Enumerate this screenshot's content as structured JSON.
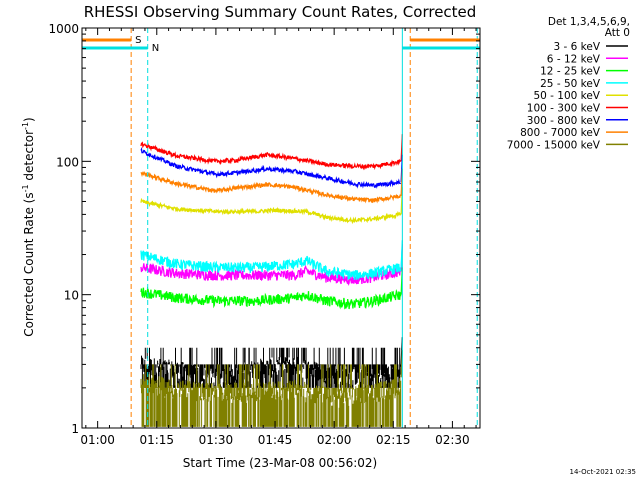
{
  "chart_data": {
    "type": "line",
    "title": "RHESSI Observing Summary Count Rates, Corrected",
    "xlabel": "Start Time (23-Mar-08 00:56:02)",
    "ylabel_main": "Corrected Count Rate (s",
    "ylabel_exp1": "-1",
    "ylabel_mid": " detector",
    "ylabel_exp2": "-1",
    "ylabel_end": ")",
    "y_scale": "log",
    "ylim": [
      1,
      1000
    ],
    "xlim_minutes": [
      56.03,
      157.0
    ],
    "x_tick_labels": [
      "01:00",
      "01:15",
      "01:30",
      "01:45",
      "02:00",
      "02:15",
      "02:30"
    ],
    "x_tick_minutes": [
      60,
      75,
      90,
      105,
      120,
      135,
      150
    ],
    "y_tick_labels": [
      "1",
      "10",
      "100",
      "1000"
    ],
    "y_tick_values": [
      1,
      10,
      100,
      1000
    ],
    "legend_header_1": "Det 1,3,4,5,6,9,",
    "legend_header_2": "Att 0",
    "legend_placement": "right",
    "series": [
      {
        "name": "3 - 6 keV",
        "color": "#000000",
        "x": [
          71,
          80,
          90,
          95,
          100,
          110,
          115,
          120,
          130,
          137
        ],
        "values": [
          3.5,
          3.2,
          2.8,
          3.0,
          3.3,
          3.5,
          3.2,
          3.0,
          2.9,
          3.0
        ]
      },
      {
        "name": "6 - 12 keV",
        "color": "#ff00ff",
        "x": [
          71,
          80,
          90,
          100,
          110,
          113,
          118,
          125,
          130,
          137
        ],
        "values": [
          16,
          14.5,
          14,
          14,
          14,
          15,
          13.5,
          13,
          13.5,
          15
        ]
      },
      {
        "name": "12 - 25 keV",
        "color": "#00ff00",
        "x": [
          71,
          80,
          90,
          100,
          110,
          113,
          118,
          125,
          130,
          137
        ],
        "values": [
          10.5,
          9.5,
          9.0,
          9.0,
          9.5,
          10.0,
          9.0,
          8.5,
          9.0,
          10.0
        ]
      },
      {
        "name": "25 - 50 keV",
        "color": "#00ffff",
        "x": [
          71,
          80,
          90,
          100,
          110,
          113,
          118,
          125,
          130,
          137
        ],
        "values": [
          20,
          17,
          16,
          16,
          17,
          18,
          15,
          14,
          14.5,
          16
        ]
      },
      {
        "name": "50 - 100 keV",
        "color": "#e0e000",
        "x": [
          71,
          80,
          90,
          100,
          105,
          113,
          118,
          125,
          130,
          137
        ],
        "values": [
          50,
          44,
          42,
          42,
          43,
          42,
          38,
          36,
          37,
          40
        ]
      },
      {
        "name": "100 - 300 keV",
        "color": "#ff0000",
        "x": [
          71,
          80,
          90,
          95,
          103,
          110,
          118,
          125,
          130,
          137
        ],
        "values": [
          135,
          110,
          100,
          102,
          112,
          105,
          95,
          92,
          92,
          100
        ]
      },
      {
        "name": "300 - 800 keV",
        "color": "#0000ff",
        "x": [
          71,
          80,
          90,
          95,
          103,
          110,
          118,
          125,
          130,
          137
        ],
        "values": [
          120,
          92,
          80,
          82,
          88,
          84,
          75,
          68,
          66,
          70
        ]
      },
      {
        "name": "800 - 7000 keV",
        "color": "#ff8000",
        "x": [
          71,
          80,
          90,
          95,
          103,
          110,
          118,
          125,
          130,
          137
        ],
        "values": [
          82,
          68,
          60,
          63,
          67,
          64,
          56,
          52,
          51,
          55
        ]
      },
      {
        "name": "7000 - 15000 keV",
        "color": "#808000",
        "x": [
          71,
          80,
          90,
          100,
          110,
          120,
          130,
          137
        ],
        "values": [
          2.6,
          2.3,
          2.2,
          2.2,
          2.3,
          2.0,
          2.2,
          2.4
        ]
      }
    ],
    "annotations": [
      {
        "label": "S",
        "color": "#ff8000"
      },
      {
        "label": "N",
        "color": "#00e0e0"
      }
    ],
    "timestamp": "14-Oct-2021 02:35"
  }
}
